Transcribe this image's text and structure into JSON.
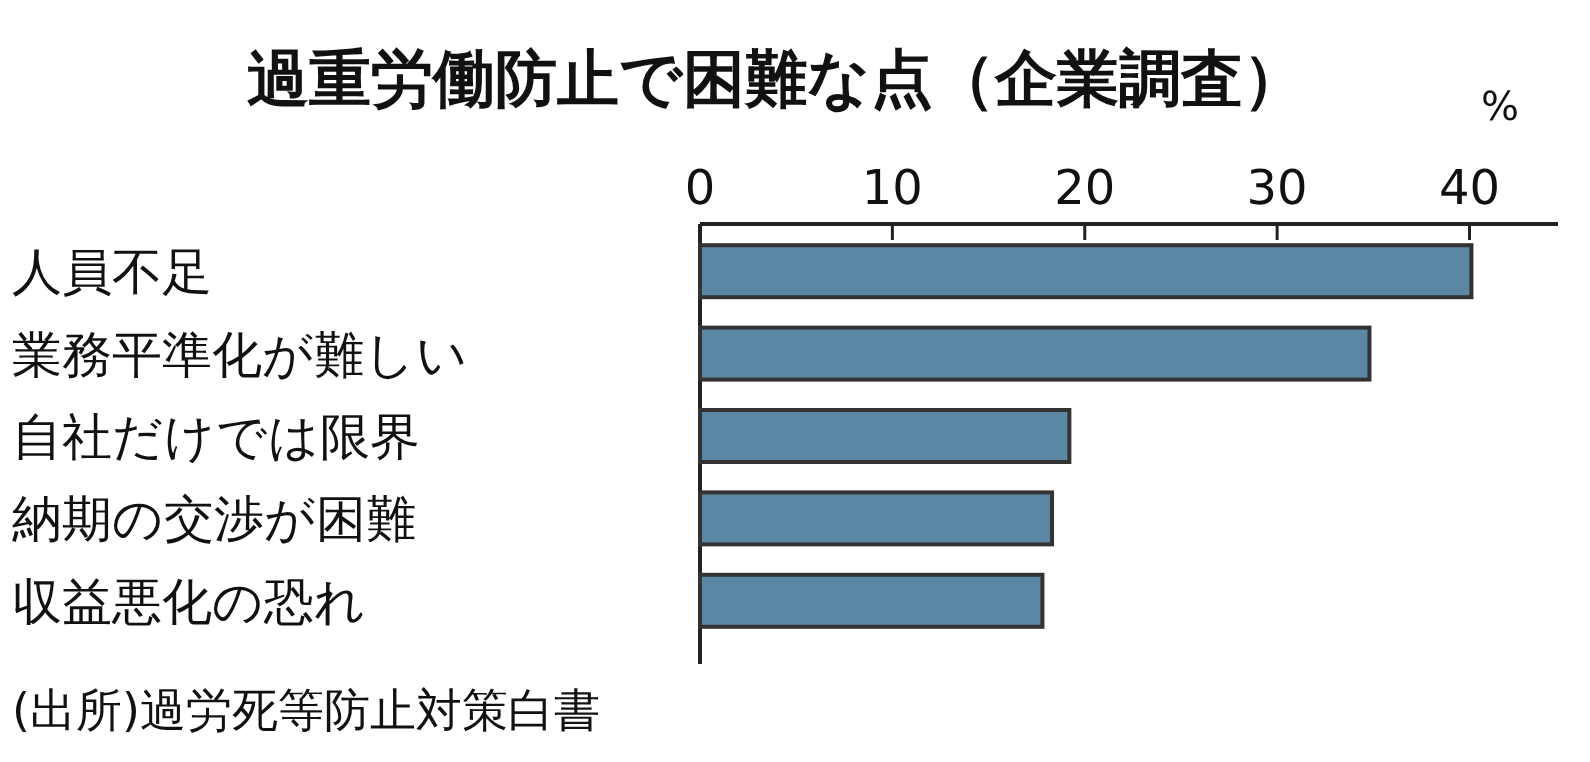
{
  "chart_data": {
    "type": "bar",
    "orientation": "horizontal",
    "title": "過重労働防止で困難な点（企業調査）",
    "xlabel": "%",
    "categories": [
      "人員不足",
      "業務平準化が難しい",
      "自社だけでは限界",
      "納期の交渉が困難",
      "収益悪化の恐れ"
    ],
    "values": [
      40.1,
      34.8,
      19.2,
      18.3,
      17.8
    ],
    "color": "#5b87a4",
    "xlim": [
      0,
      44.6
    ],
    "xticks": [
      0,
      10,
      20,
      30,
      40
    ],
    "annotations": [
      "(出所)過労死等防止対策白書"
    ]
  }
}
